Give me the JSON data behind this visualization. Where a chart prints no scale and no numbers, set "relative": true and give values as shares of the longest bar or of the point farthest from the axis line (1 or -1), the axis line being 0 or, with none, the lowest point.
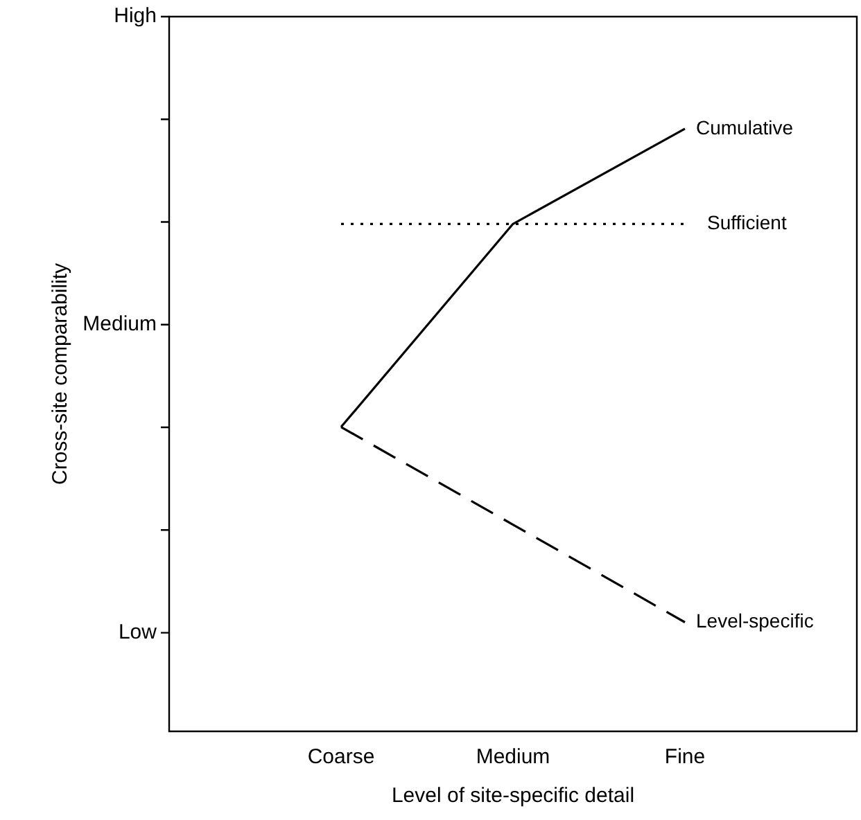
{
  "chart_data": {
    "type": "line",
    "xlabel": "Level of site-specific detail",
    "ylabel": "Cross-site comparability",
    "categories": [
      "Coarse",
      "Medium",
      "Fine"
    ],
    "relative": true,
    "series": [
      {
        "name": "Cumulative",
        "color": "#000000",
        "line_style": "solid",
        "values": [
          0.505,
          0.842,
          1
        ]
      },
      {
        "name": "Sufficient",
        "color": "#000000",
        "line_style": "dotted",
        "values": [
          0.842,
          0.842,
          0.842
        ]
      },
      {
        "name": "Level-specific",
        "color": "#000000",
        "line_style": "dashed",
        "values": [
          0.505,
          0.343,
          0.181
        ]
      }
    ],
    "annotations": [
      "Low",
      "Medium",
      "High"
    ],
    "grid": false,
    "legend": false,
    "marker": "none"
  }
}
